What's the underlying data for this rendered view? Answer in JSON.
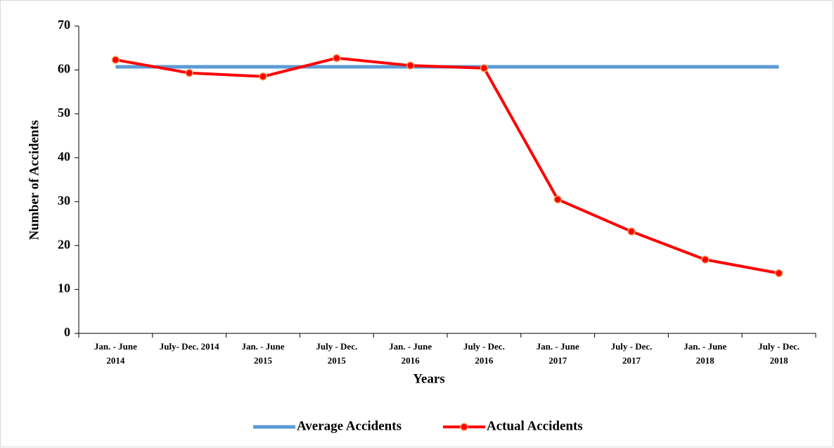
{
  "chart_data": {
    "type": "line",
    "x_label": "Years",
    "y_label": "Number of Accidents",
    "categories": [
      [
        "Jan. - June",
        "2014"
      ],
      [
        "July- Dec. 2014"
      ],
      [
        "Jan. - June",
        "2015"
      ],
      [
        "July - Dec.",
        "2015"
      ],
      [
        "Jan. - June",
        "2016"
      ],
      [
        "July - Dec.",
        "2016"
      ],
      [
        "Jan. - June",
        "2017"
      ],
      [
        "July - Dec.",
        "2017"
      ],
      [
        "Jan. - June",
        "2018"
      ],
      [
        "July - Dec.",
        "2018"
      ]
    ],
    "series": [
      {
        "name": "Average Accidents",
        "color": "#5b9bd5",
        "marker": false,
        "values": [
          60.7,
          60.7,
          60.7,
          60.7,
          60.7,
          60.7,
          60.7,
          60.7,
          60.7,
          60.7
        ]
      },
      {
        "name": "Actual Accidents",
        "color": "#ff0000",
        "marker": true,
        "values": [
          62.3,
          59.3,
          58.5,
          62.7,
          61.0,
          60.4,
          30.5,
          23.2,
          16.8,
          13.7
        ]
      }
    ],
    "ylim": [
      0,
      70
    ],
    "yticks": [
      0,
      10,
      20,
      30,
      40,
      50,
      60,
      70
    ],
    "grid": false,
    "legend": "bottom"
  }
}
